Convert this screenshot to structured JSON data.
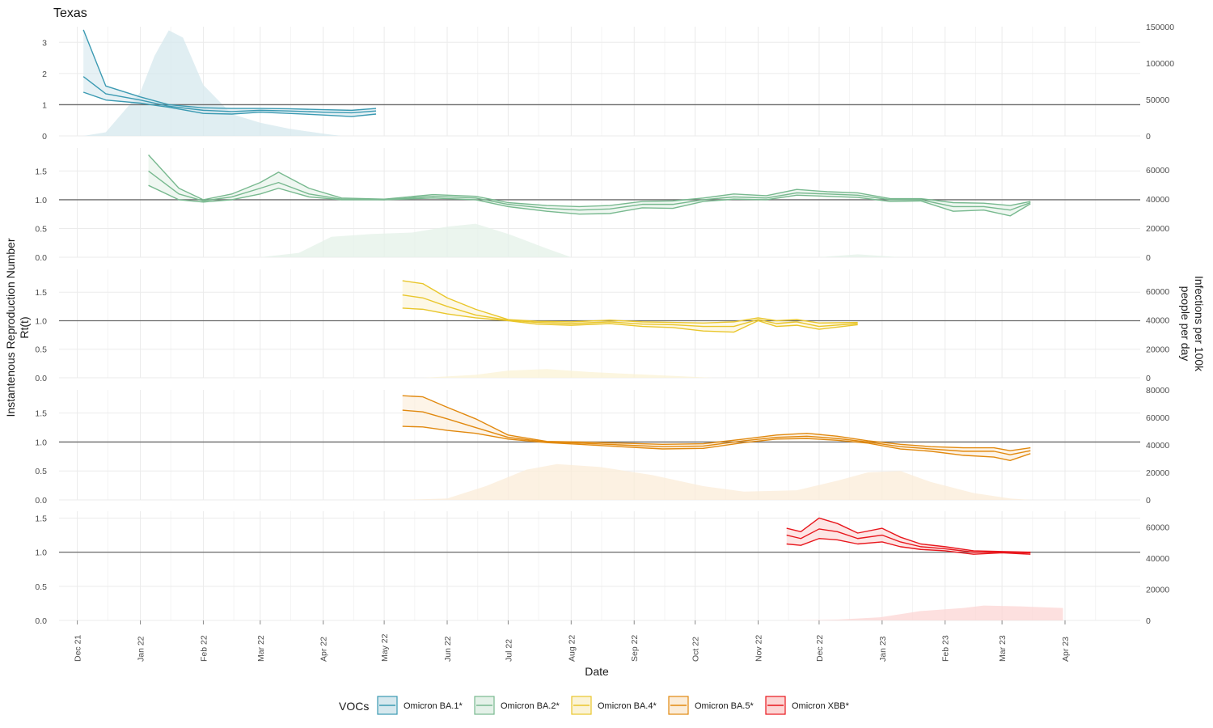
{
  "title": "Texas",
  "chart_data": {
    "type": "line",
    "title": "Texas",
    "xlabel": "Date",
    "ylabel_left": "Instantenous Reproduction Number\nRt(t)",
    "ylabel_right": "Infections per 100k\npeople per day",
    "x_ticks": [
      "Dec 21",
      "Jan 22",
      "Feb 22",
      "Mar 22",
      "Apr 22",
      "May 22",
      "Jun 22",
      "Jul 22",
      "Aug 22",
      "Sep 22",
      "Oct 22",
      "Nov 22",
      "Dec 22",
      "Jan 23",
      "Feb 23",
      "Mar 23",
      "Apr 23"
    ],
    "reference_line": 1.0,
    "grid": true,
    "legend_title": "VOCs",
    "legend_position": "bottom",
    "panels": [
      {
        "series": "Omicron BA.1*",
        "color": "#3b9ab2",
        "fill": "#d6e8ee",
        "rt_ylim": [
          0,
          3.5
        ],
        "rt_ticks": [
          "0",
          "1",
          "2",
          "3"
        ],
        "inf_ylim": [
          0,
          150000
        ],
        "inf_ticks": [
          "0",
          "50000",
          "100000",
          "150000"
        ],
        "rt_x": [
          "2021-12-04",
          "2021-12-15",
          "2022-01-01",
          "2022-01-15",
          "2022-02-01",
          "2022-02-15",
          "2022-03-01",
          "2022-03-15",
          "2022-04-01",
          "2022-04-15",
          "2022-04-27"
        ],
        "rt_mid": [
          1.9,
          1.35,
          1.15,
          0.95,
          0.82,
          0.78,
          0.82,
          0.8,
          0.76,
          0.74,
          0.8
        ],
        "rt_lo": [
          1.4,
          1.15,
          1.05,
          0.92,
          0.72,
          0.7,
          0.76,
          0.72,
          0.67,
          0.62,
          0.7
        ],
        "rt_hi": [
          3.4,
          1.6,
          1.25,
          1.0,
          0.9,
          0.88,
          0.88,
          0.87,
          0.84,
          0.82,
          0.88
        ],
        "inf_x": [
          "2021-12-04",
          "2021-12-15",
          "2022-01-01",
          "2022-01-08",
          "2022-01-15",
          "2022-01-22",
          "2022-02-01",
          "2022-02-15",
          "2022-03-01",
          "2022-03-15",
          "2022-04-01",
          "2022-04-10"
        ],
        "inf_y": [
          0,
          5000,
          60000,
          110000,
          145000,
          135000,
          70000,
          30000,
          18000,
          10000,
          3000,
          0
        ]
      },
      {
        "series": "Omicron BA.2*",
        "color": "#78b98f",
        "fill": "#e4f1e8",
        "rt_ylim": [
          0,
          1.9
        ],
        "rt_ticks": [
          "0.0",
          "0.5",
          "1.0",
          "1.5"
        ],
        "inf_ylim": [
          0,
          75000
        ],
        "inf_ticks": [
          "0",
          "20000",
          "40000",
          "60000"
        ],
        "rt_x": [
          "2022-01-05",
          "2022-01-20",
          "2022-02-01",
          "2022-02-15",
          "2022-03-01",
          "2022-03-10",
          "2022-03-25",
          "2022-04-10",
          "2022-05-01",
          "2022-05-25",
          "2022-06-15",
          "2022-07-01",
          "2022-07-20",
          "2022-08-05",
          "2022-08-20",
          "2022-09-05",
          "2022-09-20",
          "2022-10-05",
          "2022-10-20",
          "2022-11-05",
          "2022-11-20",
          "2022-12-05",
          "2022-12-20",
          "2023-01-05",
          "2023-01-20",
          "2023-02-05",
          "2023-02-20",
          "2023-03-05",
          "2023-03-15"
        ],
        "rt_mid": [
          1.5,
          1.1,
          0.98,
          1.05,
          1.2,
          1.3,
          1.1,
          1.01,
          1.0,
          1.06,
          1.03,
          0.92,
          0.85,
          0.82,
          0.84,
          0.92,
          0.92,
          1.0,
          1.05,
          1.03,
          1.12,
          1.1,
          1.08,
          1.0,
          1.0,
          0.88,
          0.88,
          0.82,
          0.95
        ],
        "rt_lo": [
          1.25,
          1.0,
          0.96,
          1.0,
          1.1,
          1.2,
          1.05,
          1.0,
          1.0,
          1.03,
          1.0,
          0.88,
          0.8,
          0.75,
          0.76,
          0.86,
          0.85,
          0.97,
          1.01,
          1.0,
          1.08,
          1.06,
          1.04,
          0.97,
          0.98,
          0.8,
          0.82,
          0.72,
          0.93
        ],
        "rt_hi": [
          1.78,
          1.2,
          1.0,
          1.1,
          1.3,
          1.48,
          1.2,
          1.03,
          1.01,
          1.09,
          1.06,
          0.95,
          0.9,
          0.88,
          0.9,
          0.97,
          0.98,
          1.03,
          1.1,
          1.07,
          1.18,
          1.14,
          1.12,
          1.02,
          1.02,
          0.95,
          0.94,
          0.9,
          0.97
        ],
        "inf_x": [
          "2022-03-01",
          "2022-03-20",
          "2022-04-05",
          "2022-04-25",
          "2022-05-15",
          "2022-06-01",
          "2022-06-15",
          "2022-07-01",
          "2022-07-20",
          "2022-08-01",
          "2022-12-01",
          "2022-12-20",
          "2023-01-10"
        ],
        "inf_y": [
          0,
          3000,
          14000,
          16000,
          17000,
          21000,
          23000,
          16000,
          6000,
          0,
          0,
          2000,
          0
        ]
      },
      {
        "series": "Omicron BA.4*",
        "color": "#e9c62b",
        "fill": "#fbf3d6",
        "rt_ylim": [
          0,
          1.9
        ],
        "rt_ticks": [
          "0.0",
          "0.5",
          "1.0",
          "1.5"
        ],
        "inf_ylim": [
          0,
          75000
        ],
        "inf_ticks": [
          "0",
          "20000",
          "40000",
          "60000"
        ],
        "rt_x": [
          "2022-05-10",
          "2022-05-20",
          "2022-06-01",
          "2022-06-15",
          "2022-07-01",
          "2022-07-15",
          "2022-08-01",
          "2022-08-20",
          "2022-09-05",
          "2022-09-20",
          "2022-10-05",
          "2022-10-20",
          "2022-11-01",
          "2022-11-10",
          "2022-11-20",
          "2022-12-01",
          "2022-12-20"
        ],
        "rt_mid": [
          1.45,
          1.4,
          1.25,
          1.1,
          1.01,
          0.97,
          0.95,
          0.98,
          0.94,
          0.93,
          0.9,
          0.9,
          1.02,
          0.95,
          0.98,
          0.9,
          0.95
        ],
        "rt_lo": [
          1.22,
          1.2,
          1.12,
          1.05,
          1.0,
          0.94,
          0.92,
          0.95,
          0.9,
          0.88,
          0.82,
          0.8,
          1.0,
          0.9,
          0.92,
          0.85,
          0.93
        ],
        "rt_hi": [
          1.7,
          1.65,
          1.4,
          1.2,
          1.02,
          0.99,
          0.98,
          1.01,
          0.98,
          0.97,
          0.96,
          0.98,
          1.05,
          1.0,
          1.02,
          0.96,
          0.97
        ],
        "inf_x": [
          "2022-05-20",
          "2022-06-15",
          "2022-07-01",
          "2022-07-20",
          "2022-08-10",
          "2022-09-01",
          "2022-09-25",
          "2022-10-10"
        ],
        "inf_y": [
          0,
          2000,
          5000,
          6000,
          4000,
          2500,
          1000,
          0
        ]
      },
      {
        "series": "Omicron BA.5*",
        "color": "#e1890f",
        "fill": "#fbecd8",
        "rt_ylim": [
          0,
          1.9
        ],
        "rt_ticks": [
          "0.0",
          "0.5",
          "1.0",
          "1.5"
        ],
        "inf_ylim": [
          0,
          80000
        ],
        "inf_ticks": [
          "0",
          "20000",
          "40000",
          "60000",
          "80000"
        ],
        "rt_x": [
          "2022-05-10",
          "2022-05-20",
          "2022-06-01",
          "2022-06-15",
          "2022-07-01",
          "2022-07-20",
          "2022-08-05",
          "2022-08-25",
          "2022-09-15",
          "2022-10-05",
          "2022-10-25",
          "2022-11-10",
          "2022-11-25",
          "2022-12-10",
          "2022-12-25",
          "2023-01-10",
          "2023-01-25",
          "2023-02-10",
          "2023-02-25",
          "2023-03-05",
          "2023-03-15"
        ],
        "rt_mid": [
          1.55,
          1.52,
          1.4,
          1.25,
          1.08,
          1.0,
          0.98,
          0.95,
          0.92,
          0.93,
          1.02,
          1.08,
          1.1,
          1.06,
          1.0,
          0.92,
          0.88,
          0.84,
          0.84,
          0.78,
          0.85
        ],
        "rt_lo": [
          1.27,
          1.26,
          1.2,
          1.15,
          1.05,
          0.99,
          0.96,
          0.92,
          0.88,
          0.89,
          0.99,
          1.05,
          1.06,
          1.03,
          0.98,
          0.88,
          0.84,
          0.77,
          0.74,
          0.68,
          0.8
        ],
        "rt_hi": [
          1.8,
          1.78,
          1.6,
          1.4,
          1.12,
          1.01,
          1.0,
          0.98,
          0.96,
          0.97,
          1.05,
          1.12,
          1.15,
          1.1,
          1.02,
          0.96,
          0.92,
          0.9,
          0.9,
          0.85,
          0.9
        ],
        "inf_x": [
          "2022-05-10",
          "2022-06-01",
          "2022-06-20",
          "2022-07-10",
          "2022-07-25",
          "2022-08-15",
          "2022-09-10",
          "2022-10-05",
          "2022-10-25",
          "2022-11-20",
          "2022-12-10",
          "2022-12-25",
          "2023-01-10",
          "2023-01-25",
          "2023-02-15",
          "2023-03-05",
          "2023-03-15"
        ],
        "inf_y": [
          0,
          1000,
          10000,
          22000,
          26000,
          24000,
          18000,
          10000,
          6000,
          7000,
          14000,
          20000,
          21000,
          13000,
          5000,
          1000,
          0
        ]
      },
      {
        "series": "Omicron XBB*",
        "color": "#e8171d",
        "fill": "#fcd5d4",
        "rt_ylim": [
          0,
          1.6
        ],
        "rt_ticks": [
          "0.0",
          "0.5",
          "1.0",
          "1.5"
        ],
        "inf_ylim": [
          0,
          70000
        ],
        "inf_ticks": [
          "0",
          "20000",
          "40000",
          "60000"
        ],
        "rt_x": [
          "2022-11-15",
          "2022-11-22",
          "2022-12-01",
          "2022-12-10",
          "2022-12-20",
          "2023-01-01",
          "2023-01-10",
          "2023-01-20",
          "2023-02-01",
          "2023-02-15",
          "2023-03-01",
          "2023-03-15"
        ],
        "rt_mid": [
          1.25,
          1.2,
          1.34,
          1.3,
          1.2,
          1.25,
          1.15,
          1.08,
          1.05,
          1.0,
          1.0,
          0.99
        ],
        "rt_lo": [
          1.12,
          1.1,
          1.2,
          1.18,
          1.12,
          1.15,
          1.08,
          1.04,
          1.02,
          0.97,
          0.99,
          0.97
        ],
        "rt_hi": [
          1.35,
          1.3,
          1.5,
          1.42,
          1.28,
          1.35,
          1.22,
          1.12,
          1.08,
          1.02,
          1.01,
          1.0
        ],
        "inf_x": [
          "2022-11-15",
          "2022-12-10",
          "2022-12-31",
          "2023-01-20",
          "2023-02-10",
          "2023-02-20",
          "2023-03-10",
          "2023-03-31"
        ],
        "inf_y": [
          0,
          500,
          2000,
          6000,
          8000,
          9500,
          9000,
          8000
        ]
      }
    ]
  }
}
